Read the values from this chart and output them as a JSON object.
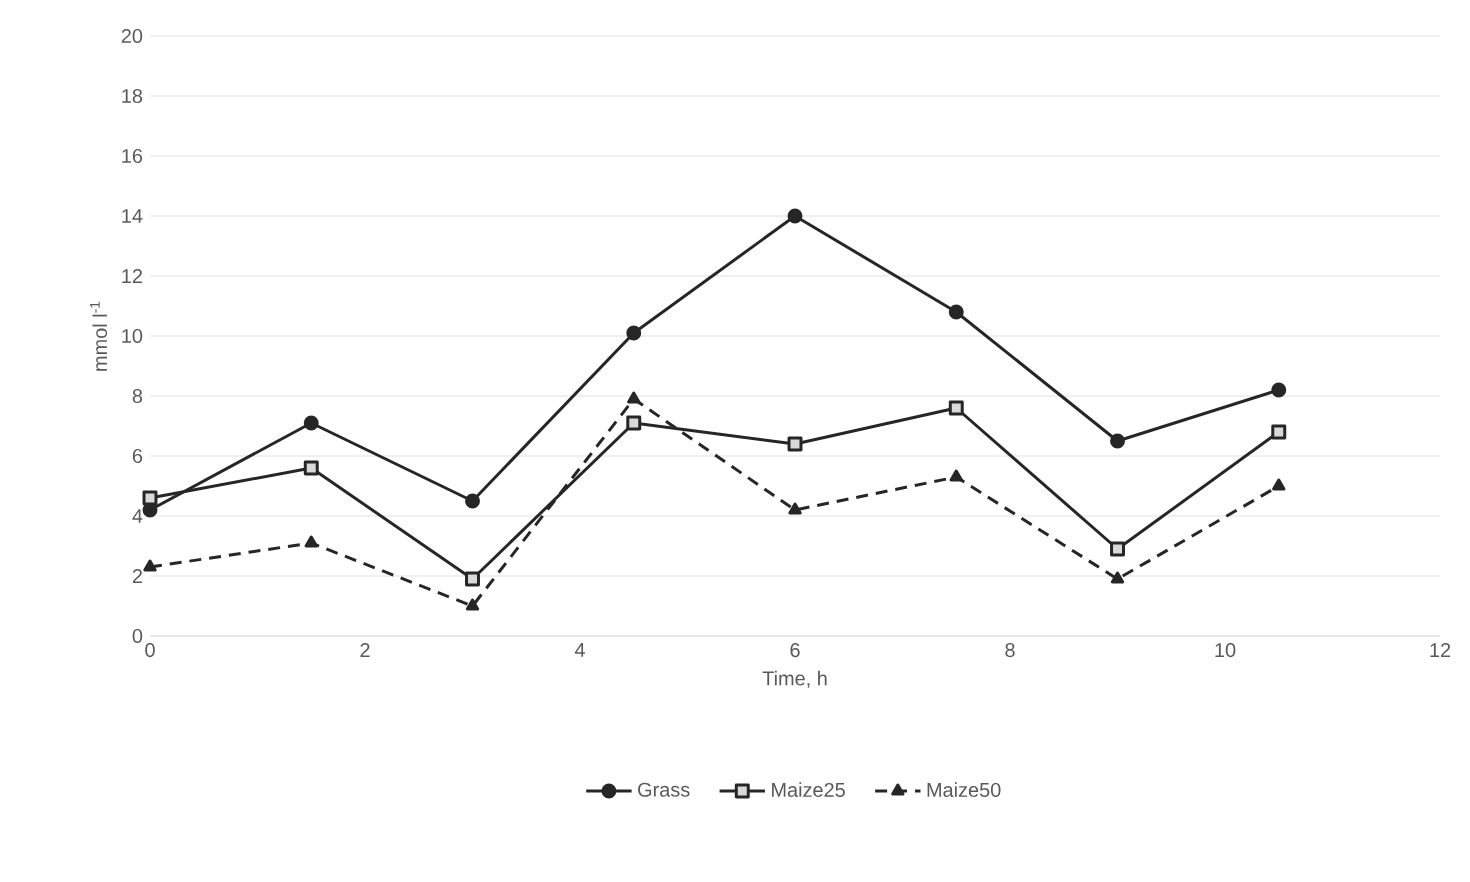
{
  "chart_data": {
    "type": "line",
    "xlabel": "Time, h",
    "ylabel": "mmol l$^{-1}$",
    "x": [
      0,
      1.5,
      3,
      4.5,
      6,
      7.5,
      9,
      10.5
    ],
    "series": [
      {
        "name": "Grass",
        "color": "#262626",
        "marker": "circle",
        "line_style": "solid",
        "values": [
          4.2,
          7.1,
          4.5,
          10.1,
          14.0,
          10.8,
          6.5,
          8.2
        ]
      },
      {
        "name": "Maize25",
        "color": "#262626",
        "marker": "square",
        "line_style": "solid",
        "values": [
          4.6,
          5.6,
          1.9,
          7.1,
          6.4,
          7.6,
          2.9,
          6.8
        ]
      },
      {
        "name": "Maize50",
        "color": "#262626",
        "marker": "triangle",
        "line_style": "dashed",
        "values": [
          2.3,
          3.1,
          1.0,
          7.9,
          4.2,
          5.3,
          1.9,
          5.0
        ]
      }
    ],
    "xlim": [
      0,
      12
    ],
    "xticks": [
      0,
      2,
      4,
      6,
      8,
      10,
      12
    ],
    "ylim": [
      0,
      20
    ],
    "yticks": [
      0,
      2,
      4,
      6,
      8,
      10,
      12,
      14,
      16,
      18,
      20
    ],
    "grid": "y",
    "legend": "bottom"
  }
}
